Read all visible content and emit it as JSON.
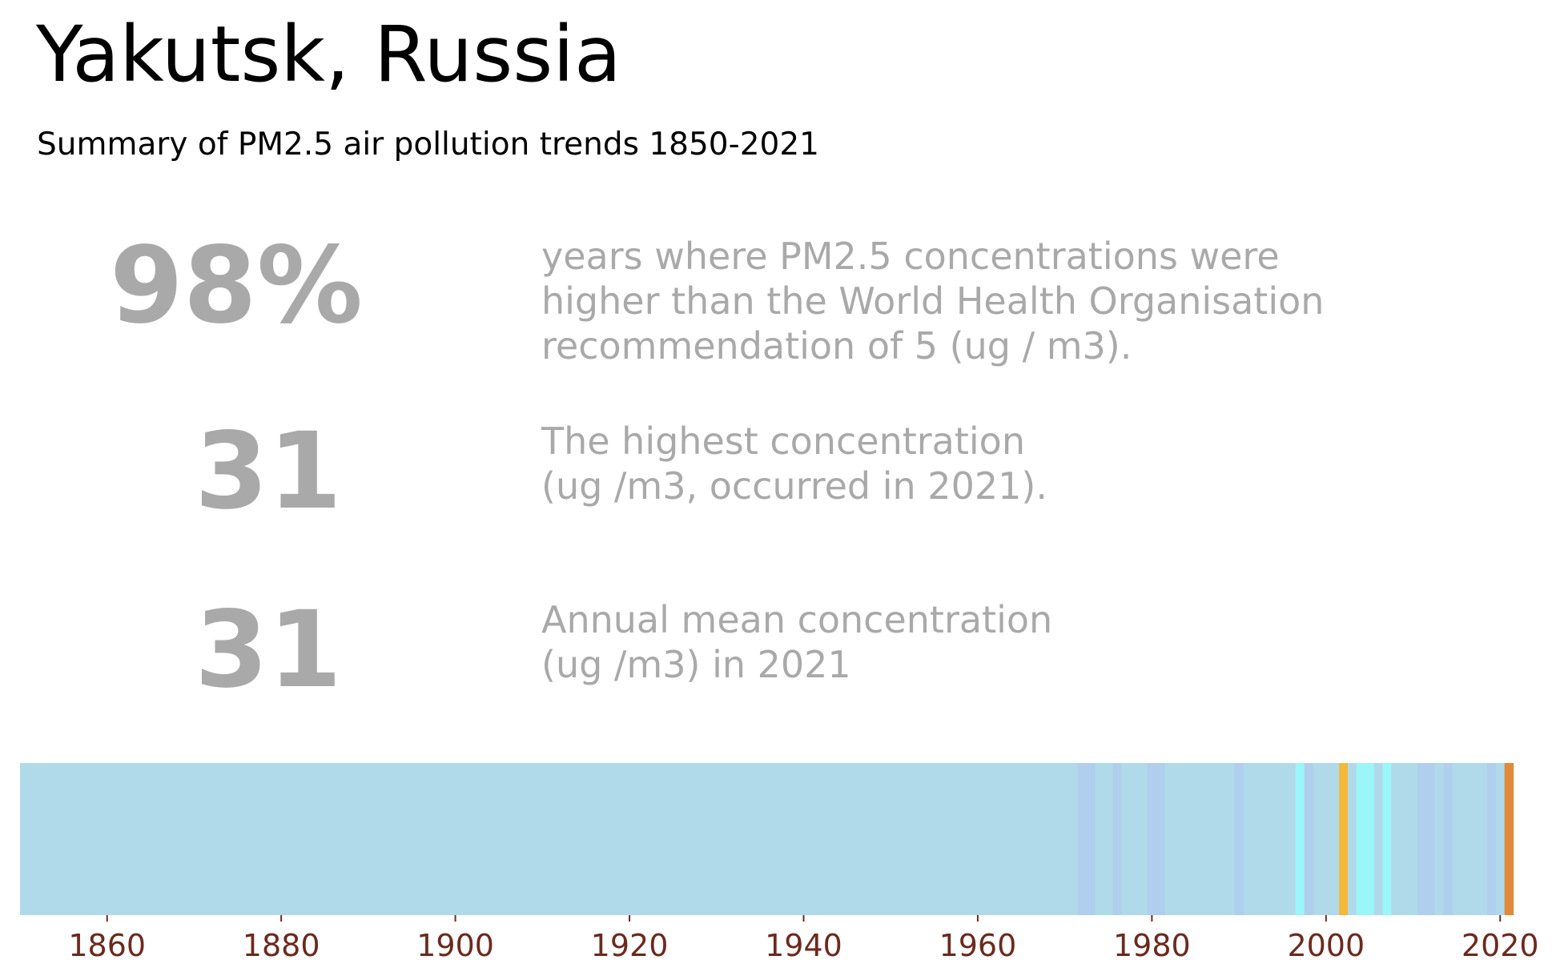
{
  "header": {
    "title": "Yakutsk, Russia",
    "subtitle": "Summary of PM2.5 air pollution trends 1850-2021"
  },
  "stats": [
    {
      "value": "98%",
      "lines": [
        "years where PM2.5 concentrations were",
        "higher than the World Health Organisation",
        "recommendation of 5 (ug / m3)."
      ]
    },
    {
      "value": "31",
      "lines": [
        "The highest concentration",
        "(ug /m3, occurred in 2021)."
      ]
    },
    {
      "value": "31",
      "lines": [
        "Annual mean concentration",
        "(ug /m3) in 2021"
      ]
    }
  ],
  "chart_data": {
    "type": "heatmap",
    "xlim": [
      1850,
      2022
    ],
    "xticks": [
      1860,
      1880,
      1900,
      1920,
      1940,
      1960,
      1980,
      2000,
      2020
    ],
    "tick_color": "#6b2a1e",
    "base_color": "#b0dae9",
    "stripes": [
      {
        "from": 1850,
        "to": 1971.5,
        "color": "#b0dae9"
      },
      {
        "from": 1971.5,
        "to": 1973.5,
        "color": "#b0cfee"
      },
      {
        "from": 1973.5,
        "to": 1975.5,
        "color": "#b0dae9"
      },
      {
        "from": 1975.5,
        "to": 1976.5,
        "color": "#b0cfee"
      },
      {
        "from": 1976.5,
        "to": 1979.5,
        "color": "#b0dae9"
      },
      {
        "from": 1979.5,
        "to": 1981.5,
        "color": "#b0cfee"
      },
      {
        "from": 1981.5,
        "to": 1989.5,
        "color": "#b0dae9"
      },
      {
        "from": 1989.5,
        "to": 1990.5,
        "color": "#b0cfee"
      },
      {
        "from": 1990.5,
        "to": 1996.5,
        "color": "#b0dae9"
      },
      {
        "from": 1996.5,
        "to": 1997.5,
        "color": "#9bf6f8"
      },
      {
        "from": 1997.5,
        "to": 1998.5,
        "color": "#b0cfee"
      },
      {
        "from": 1998.5,
        "to": 2001.5,
        "color": "#b0dae9"
      },
      {
        "from": 2001.5,
        "to": 2002.5,
        "color": "#f5b93a"
      },
      {
        "from": 2002.5,
        "to": 2003.5,
        "color": "#b0dae9"
      },
      {
        "from": 2003.5,
        "to": 2005.5,
        "color": "#9bf6f8"
      },
      {
        "from": 2005.5,
        "to": 2006.5,
        "color": "#b0dae9"
      },
      {
        "from": 2006.5,
        "to": 2007.5,
        "color": "#9bf6f8"
      },
      {
        "from": 2007.5,
        "to": 2010.5,
        "color": "#b0dae9"
      },
      {
        "from": 2010.5,
        "to": 2012.5,
        "color": "#b0cfee"
      },
      {
        "from": 2012.5,
        "to": 2013.5,
        "color": "#b0dae9"
      },
      {
        "from": 2013.5,
        "to": 2014.5,
        "color": "#b0cfee"
      },
      {
        "from": 2014.5,
        "to": 2018.5,
        "color": "#b0dae9"
      },
      {
        "from": 2018.5,
        "to": 2019.5,
        "color": "#b0cfee"
      },
      {
        "from": 2019.5,
        "to": 2020.5,
        "color": "#b0dae9"
      },
      {
        "from": 2020.5,
        "to": 2021.5,
        "color": "#e08a3a"
      }
    ]
  }
}
